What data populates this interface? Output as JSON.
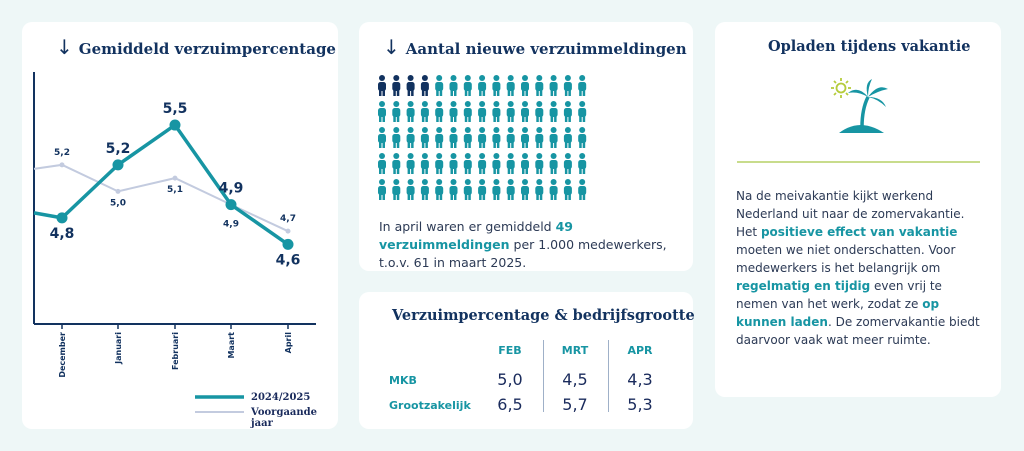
{
  "chart_card": {
    "title": "Gemiddeld verzuimpercentage",
    "arrow_icon": "arrow-down-icon"
  },
  "chart_data": {
    "type": "line",
    "categories": [
      "December",
      "Januari",
      "Februari",
      "Maart",
      "April"
    ],
    "series": [
      {
        "name": "2024/2025",
        "values": [
          4.8,
          5.2,
          5.5,
          4.9,
          4.6
        ],
        "labels": [
          "4,8",
          "5,2",
          "5,5",
          "4,9",
          "4,6"
        ],
        "color": "#1795a3"
      },
      {
        "name": "Voorgaande jaar",
        "values": [
          5.2,
          5.0,
          5.1,
          4.9,
          4.7
        ],
        "labels": [
          "5,2",
          "5,0",
          "5,1",
          "4,9",
          "4,7"
        ],
        "color": "#c3cbdf"
      }
    ],
    "ylim": [
      4.0,
      5.9
    ],
    "legend": {
      "position": "bottom-right",
      "entries": [
        "2024/2025",
        "Voorgaande jaar"
      ]
    }
  },
  "people_card": {
    "title": "Aantal nieuwe verzuimmeldingen",
    "arrow_icon": "arrow-down-icon",
    "person_icon": "person-icon",
    "rows": 5,
    "cols": 15,
    "dark_count": 4,
    "colors": {
      "dark": "#12325f",
      "teal": "#1795a3"
    },
    "text_pre": "In april waren er gemiddeld ",
    "text_highlight": "49 verzuimmeldingen",
    "text_post": " per 1.000 medewerkers, t.o.v. 61 in maart 2025."
  },
  "table_card": {
    "title": "Verzuimpercentage & bedrijfsgrootte",
    "headers": [
      "FEB",
      "MRT",
      "APR"
    ],
    "rows": [
      {
        "label": "MKB",
        "values": [
          "5,0",
          "4,5",
          "4,3"
        ]
      },
      {
        "label": "Grootzakelijk",
        "values": [
          "6,5",
          "5,7",
          "5,3"
        ]
      }
    ]
  },
  "vacation_card": {
    "title": "Opladen tijdens vakantie",
    "icon": "palm-island-icon",
    "t1": "Na de meivakantie kijkt werkend Nederland uit naar de zomervakantie. Het ",
    "h1": "positieve effect van vakantie",
    "t2": " moeten we niet onderschatten. Voor medewerkers is het belangrijk om ",
    "h2": "regelmatig en tijdig",
    "t3": " even vrij te nemen van het werk, zodat ze ",
    "h3": "op kunnen laden",
    "t4": ". De zomervakantie biedt daarvoor vaak wat meer ruimte."
  }
}
